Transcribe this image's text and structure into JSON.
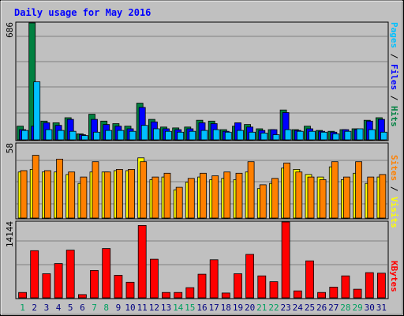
{
  "title": "Daily usage for May 2016",
  "colors": {
    "background": "#c0c0c0",
    "panel": "#c0c0c0",
    "grid": "#808080",
    "title": "#0000ff",
    "hits": "#008040",
    "files": "#0000ff",
    "pages": "#00c0ff",
    "visits": "#ffff00",
    "sites": "#ff8000",
    "kbytes": "#ff0000",
    "day_label": "#000080",
    "weekend_label": "#00a060"
  },
  "labels": {
    "hits_max": "686",
    "visits_max": "58",
    "kbytes_max": "14144",
    "right_legend_top": [
      {
        "text": "Pages",
        "color": "#00c0ff"
      },
      {
        "text": " / ",
        "color": "#000000"
      },
      {
        "text": "Files",
        "color": "#0000ff"
      },
      {
        "text": " / ",
        "color": "#000000"
      },
      {
        "text": "Hits",
        "color": "#008040"
      }
    ],
    "right_legend_mid": [
      {
        "text": "Sites",
        "color": "#ff8000"
      },
      {
        "text": " / ",
        "color": "#000000"
      },
      {
        "text": "Visits",
        "color": "#ffff00"
      }
    ],
    "right_legend_bottom": [
      {
        "text": "KBytes",
        "color": "#ff0000"
      }
    ]
  },
  "chart_data": {
    "type": "bar",
    "title": "Daily usage for May 2016",
    "categories": [
      "1",
      "2",
      "3",
      "4",
      "5",
      "6",
      "7",
      "8",
      "9",
      "10",
      "11",
      "12",
      "13",
      "14",
      "15",
      "16",
      "17",
      "18",
      "19",
      "20",
      "21",
      "22",
      "23",
      "24",
      "25",
      "26",
      "27",
      "28",
      "29",
      "30",
      "31"
    ],
    "weekend_days": [
      1,
      7,
      8,
      14,
      15,
      21,
      22,
      28,
      29
    ],
    "panels": [
      {
        "name": "hits_files_pages",
        "ylim": [
          0,
          686
        ],
        "series": [
          {
            "name": "Hits",
            "color": "#008040",
            "values": [
              80,
              686,
              110,
              100,
              130,
              35,
              150,
              110,
              95,
              80,
              215,
              120,
              75,
              70,
              75,
              115,
              110,
              60,
              80,
              90,
              65,
              60,
              175,
              60,
              80,
              55,
              50,
              60,
              65,
              115,
              130
            ]
          },
          {
            "name": "Files",
            "color": "#0000ff",
            "values": [
              60,
              80,
              100,
              85,
              120,
              30,
              120,
              90,
              80,
              65,
              190,
              105,
              65,
              60,
              65,
              100,
              95,
              50,
              100,
              75,
              55,
              60,
              160,
              55,
              65,
              50,
              45,
              60,
              60,
              110,
              120
            ]
          },
          {
            "name": "Pages",
            "color": "#00c0ff",
            "values": [
              55,
              340,
              60,
              55,
              50,
              25,
              45,
              55,
              55,
              50,
              85,
              65,
              50,
              45,
              50,
              55,
              60,
              45,
              55,
              45,
              40,
              30,
              60,
              50,
              50,
              45,
              35,
              50,
              65,
              60,
              45
            ]
          }
        ]
      },
      {
        "name": "visits_sites",
        "ylim": [
          0,
          58
        ],
        "series": [
          {
            "name": "Visits",
            "color": "#ffff00",
            "values": [
              36,
              38,
              36,
              36,
              34,
              27,
              36,
              36,
              37,
              37,
              47,
              30,
              32,
              22,
              28,
              32,
              30,
              31,
              30,
              36,
              23,
              27,
              39,
              38,
              34,
              32,
              40,
              30,
              35,
              27,
              32
            ]
          },
          {
            "name": "Sites",
            "color": "#ff8000",
            "values": [
              37,
              49,
              37,
              46,
              36,
              32,
              44,
              36,
              38,
              38,
              44,
              32,
              35,
              24,
              31,
              35,
              33,
              36,
              35,
              44,
              26,
              31,
              43,
              36,
              32,
              30,
              44,
              32,
              44,
              32,
              34
            ]
          }
        ]
      },
      {
        "name": "kbytes",
        "ylim": [
          0,
          14144
        ],
        "series": [
          {
            "name": "KBytes",
            "color": "#ff0000",
            "values": [
              1000,
              8800,
              4500,
              6400,
              8900,
              600,
              5100,
              9200,
              4200,
              2900,
              13500,
              7200,
              1000,
              1000,
              1900,
              4400,
              7100,
              900,
              4500,
              8100,
              4100,
              3000,
              14144,
              1300,
              6900,
              1000,
              2000,
              4100,
              1600,
              4700,
              4600
            ]
          }
        ]
      }
    ]
  }
}
